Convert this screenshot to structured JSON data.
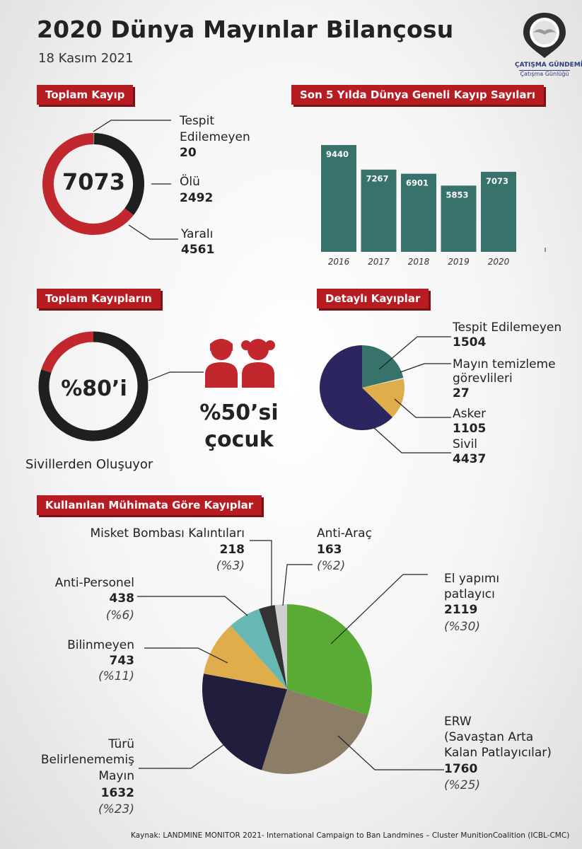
{
  "header": {
    "title": "2020 Dünya Mayınlar Bilançosu",
    "date": "18 Kasım 2021",
    "logo_line1": "ÇATIŞMA GÜNDEMİ",
    "logo_line2": "Çatışma Günlüğü"
  },
  "total_loss": {
    "heading": "Toplam Kayıp",
    "total": "7073",
    "unknown_label_1": "Tespit",
    "unknown_label_2": "Edilemeyen",
    "unknown_value": "20",
    "dead_label": "Ölü",
    "dead_value": "2492",
    "injured_label": "Yaralı",
    "injured_value": "4561",
    "colors": {
      "injured": "#c1272d",
      "dead": "#1f1f1f",
      "unknown": "#888888"
    }
  },
  "chart_data": {
    "type": "bar",
    "title": "Son 5 Yılda Dünya Geneli Kayıp Sayıları",
    "categories": [
      "2016",
      "2017",
      "2018",
      "2019",
      "2020"
    ],
    "values": [
      9440,
      7267,
      6901,
      5853,
      7073
    ],
    "color": "#37726b",
    "ylim": [
      0,
      10000
    ]
  },
  "civilians": {
    "heading": "Toplam Kayıpların",
    "percent_label": "%80’i",
    "percent": 80,
    "caption": "Sivillerden Oluşuyor",
    "children_line1": "%50’si",
    "children_line2": "çocuk",
    "colors": {
      "civil": "#1f1f1f",
      "other": "#c1272d",
      "child": "#c1272d"
    }
  },
  "detailed": {
    "heading": "Detaylı Kayıplar",
    "slices": [
      {
        "label": "Tespit Edilemeyen",
        "value": 1504,
        "value_text": "1504",
        "color": "#37726b"
      },
      {
        "label": "Mayın temizleme görevlileri",
        "label_1": "Mayın temizleme",
        "label_2": "görevlileri",
        "value": 27,
        "value_text": "27",
        "color": "#e8e8e8"
      },
      {
        "label": "Asker",
        "value": 1105,
        "value_text": "1105",
        "color": "#e0ad4c"
      },
      {
        "label": "Sivil",
        "value": 4437,
        "value_text": "4437",
        "color": "#2b2660"
      }
    ]
  },
  "munitions": {
    "heading": "Kullanılan Mühimata Göre Kayıplar",
    "slices": [
      {
        "label": "El yapımı patlayıcı",
        "value": 2119,
        "pct": "(%30)",
        "color": "#5aab35"
      },
      {
        "label": "ERW (Savaştan Arta Kalan Patlayıcılar)",
        "value": 1760,
        "pct": "(%25)",
        "color": "#8b7d66"
      },
      {
        "label": "Türü Belirlenememiş Mayın",
        "value": 1632,
        "pct": "(%23)",
        "color": "#201d3d"
      },
      {
        "label": "Bilinmeyen",
        "value": 743,
        "pct": "(%11)",
        "color": "#e0ad4c"
      },
      {
        "label": "Anti-Personel",
        "value": 438,
        "pct": "(%6)",
        "color": "#67b8b2"
      },
      {
        "label": "Misket Bombası Kalıntıları",
        "value": 218,
        "pct": "(%3)",
        "color": "#333333"
      },
      {
        "label": "Anti-Araç",
        "value": 163,
        "pct": "(%2)",
        "color": "#cfcfcf"
      }
    ],
    "texts": {
      "ied_1": "El yapımı",
      "ied_2": "patlayıcı",
      "ied_val": "2119",
      "ied_pct": "(%30)",
      "erw_1": "ERW",
      "erw_2": "(Savaştan Arta",
      "erw_3": "Kalan Patlayıcılar)",
      "erw_val": "1760",
      "erw_pct": "(%25)",
      "mine_1": "Türü",
      "mine_2": "Belirlenememiş",
      "mine_3": "Mayın",
      "mine_val": "1632",
      "mine_pct": "(%23)",
      "unk": "Bilinmeyen",
      "unk_val": "743",
      "unk_pct": "(%11)",
      "ap": "Anti-Personel",
      "ap_val": "438",
      "ap_pct": "(%6)",
      "cluster": "Misket Bombası Kalıntıları",
      "cluster_val": "218",
      "cluster_pct": "(%3)",
      "av": "Anti-Araç",
      "av_val": "163",
      "av_pct": "(%2)"
    }
  },
  "footer": {
    "source": "Kaynak: LANDMINE MONITOR 2021- International Campaign to Ban Landmines – Cluster MunitionCoalition (ICBL-CMC)"
  }
}
